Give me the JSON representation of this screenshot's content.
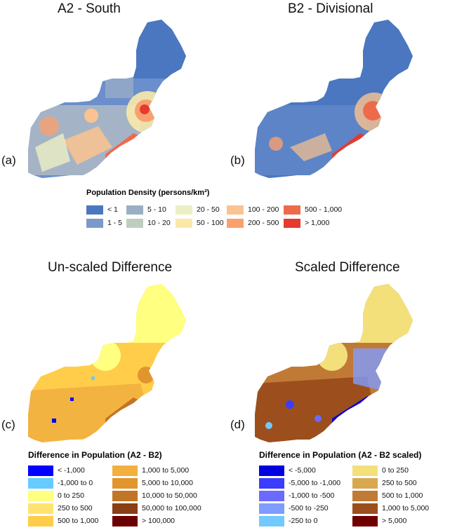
{
  "panels": [
    {
      "id": "a",
      "title": "A2 - South",
      "label": "(a)"
    },
    {
      "id": "b",
      "title": "B2 - Divisional",
      "label": "(b)"
    },
    {
      "id": "c",
      "title": "Un-scaled Difference",
      "label": "(c)"
    },
    {
      "id": "d",
      "title": "Scaled Difference",
      "label": "(d)"
    }
  ],
  "density_legend": {
    "title": "Population Density (persons/km²)",
    "items": [
      {
        "label": "< 1",
        "color": "#4a77c0"
      },
      {
        "label": "1 - 5",
        "color": "#7b9acb"
      },
      {
        "label": "5 - 10",
        "color": "#9aafc4"
      },
      {
        "label": "10 - 20",
        "color": "#bfcdbf"
      },
      {
        "label": "20 - 50",
        "color": "#ecefc4"
      },
      {
        "label": "50 - 100",
        "color": "#fbe9a8"
      },
      {
        "label": "100 - 200",
        "color": "#fbc38f"
      },
      {
        "label": "200 - 500",
        "color": "#f8a06f"
      },
      {
        "label": "500 - 1,000",
        "color": "#ef6a4a"
      },
      {
        "label": "> 1,000",
        "color": "#e53a2e"
      }
    ]
  },
  "unscaled_legend": {
    "title": "Difference in Population (A2 - B2)",
    "items": [
      {
        "label": "< -1,000",
        "color": "#0000ff"
      },
      {
        "label": "-1,000 to 0",
        "color": "#66ccff"
      },
      {
        "label": "0 to 250",
        "color": "#ffff80"
      },
      {
        "label": "250 to 500",
        "color": "#ffe36e"
      },
      {
        "label": "500 to 1,000",
        "color": "#ffcd4a"
      },
      {
        "label": "1,000 to 5,000",
        "color": "#f2b040"
      },
      {
        "label": "5,000 to 10,000",
        "color": "#e0962c"
      },
      {
        "label": "10,000 to 50,000",
        "color": "#c27526"
      },
      {
        "label": "50,000 to 100,000",
        "color": "#8a3e14"
      },
      {
        "label": "> 100,000",
        "color": "#6b0000"
      }
    ]
  },
  "scaled_legend": {
    "title": "Difference in Population (A2 - B2 scaled)",
    "items": [
      {
        "label": "< -5,000",
        "color": "#0000e0"
      },
      {
        "label": "-5,000 to -1,000",
        "color": "#3c3cff"
      },
      {
        "label": "-1,000 to -500",
        "color": "#6a6aff"
      },
      {
        "label": "-500 to -250",
        "color": "#7f9cff"
      },
      {
        "label": "-250 to 0",
        "color": "#73c8ff"
      },
      {
        "label": "0 to 250",
        "color": "#f3e07a"
      },
      {
        "label": "250 to 500",
        "color": "#d8a850"
      },
      {
        "label": "500 to 1,000",
        "color": "#c07a36"
      },
      {
        "label": "1,000 to 5,000",
        "color": "#9c4f1c"
      },
      {
        "label": "> 5,000",
        "color": "#6e0000"
      }
    ]
  }
}
